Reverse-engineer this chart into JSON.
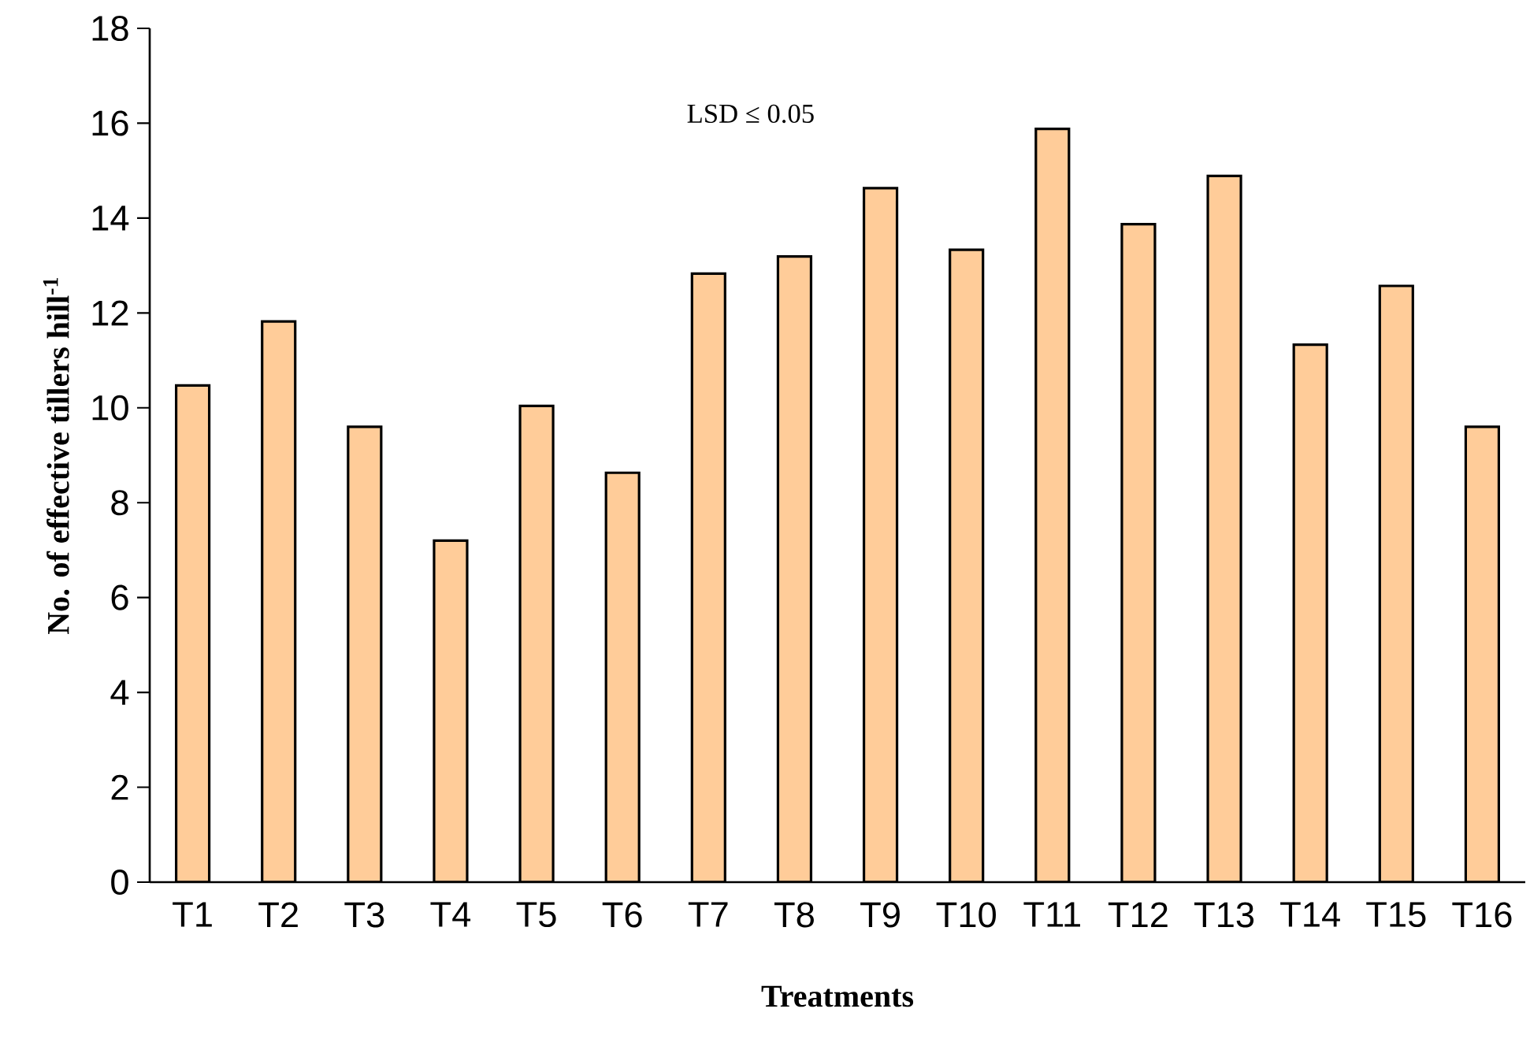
{
  "chart_data": {
    "type": "bar",
    "xlabel": "Treatments",
    "ylabel": "No. of effective tillers hill$^{-1}$",
    "categories": [
      "T1",
      "T2",
      "T3",
      "T4",
      "T5",
      "T6",
      "T7",
      "T8",
      "T9",
      "T10",
      "T11",
      "T12",
      "T13",
      "T14",
      "T15",
      "T16"
    ],
    "values": [
      10.47,
      11.82,
      9.6,
      7.2,
      10.04,
      8.63,
      12.83,
      13.19,
      14.63,
      13.33,
      15.88,
      13.87,
      14.89,
      11.33,
      12.57,
      9.6
    ],
    "color": "#ffcc99",
    "ylim": [
      0,
      18
    ],
    "yticks": [
      0,
      2,
      4,
      6,
      8,
      10,
      12,
      14,
      16,
      18
    ],
    "grid": false,
    "annotations": [
      "LSD ≤ 0.05"
    ]
  }
}
